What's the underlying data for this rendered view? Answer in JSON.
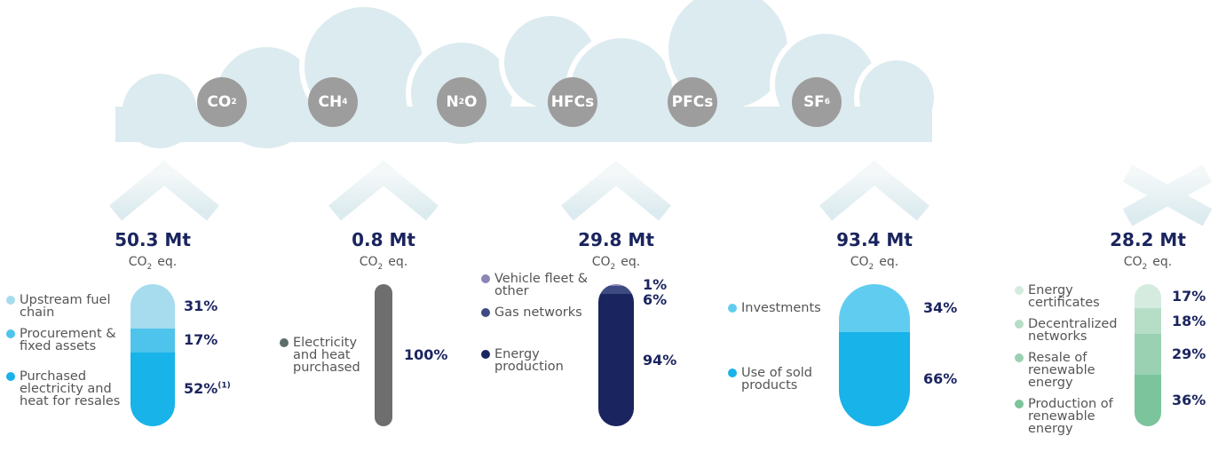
{
  "gases": [
    {
      "text": "CO",
      "sub": "2"
    },
    {
      "text": "CH",
      "sub": "4"
    },
    {
      "text": "N",
      "sub": "2",
      "after": "O"
    },
    {
      "text": "HFCs"
    },
    {
      "text": "PFCs"
    },
    {
      "text": "SF",
      "sub": "6"
    }
  ],
  "columns": [
    {
      "total": "50.3 Mt",
      "unit": "CO",
      "unit_sub": "2",
      "unit_suffix": "eq.",
      "segments": [
        {
          "label": "Upstream fuel chain",
          "value": 31,
          "value_label": "31%",
          "color": "#a6dcee"
        },
        {
          "label": "Procurement & fixed assets",
          "value": 17,
          "value_label": "17%",
          "color": "#4ec4ec"
        },
        {
          "label": "Purchased electricity and heat for resales",
          "value": 52,
          "value_label": "52%",
          "note": "(1)",
          "color": "#18b3e8"
        }
      ]
    },
    {
      "total": "0.8 Mt",
      "unit": "CO",
      "unit_sub": "2",
      "unit_suffix": "eq.",
      "segments": [
        {
          "label": "Electricity and heat purchased",
          "value": 100,
          "value_label": "100%",
          "color": "#6e6e6e",
          "dot": "#5b6e6b"
        }
      ]
    },
    {
      "total": "29.8 Mt",
      "unit": "CO",
      "unit_sub": "2",
      "unit_suffix": "eq.",
      "segments": [
        {
          "label": "Vehicle fleet & other",
          "value": 1,
          "value_label": "1%",
          "color": "#8a86b6"
        },
        {
          "label": "Gas networks",
          "value": 6,
          "value_label": "6%",
          "color": "#3e4a82"
        },
        {
          "label": "Energy production",
          "value": 94,
          "value_label": "94%",
          "color": "#1a245e"
        }
      ]
    },
    {
      "total": "93.4 Mt",
      "unit": "CO",
      "unit_sub": "2",
      "unit_suffix": "eq.",
      "segments": [
        {
          "label": "Investments",
          "value": 34,
          "value_label": "34%",
          "color": "#60cdf0"
        },
        {
          "label": "Use of sold products",
          "value": 66,
          "value_label": "66%",
          "color": "#18b3e8"
        }
      ]
    },
    {
      "total": "28.2 Mt",
      "unit": "CO",
      "unit_sub": "2",
      "unit_suffix": "eq.",
      "segments": [
        {
          "label": "Energy certificates",
          "value": 17,
          "value_label": "17%",
          "color": "#d5ebe0"
        },
        {
          "label": "Decentralized networks",
          "value": 18,
          "value_label": "18%",
          "color": "#b6dec7"
        },
        {
          "label": "Resale of renewable energy",
          "value": 29,
          "value_label": "29%",
          "color": "#9ad1b2"
        },
        {
          "label": "Production of renewable energy",
          "value": 36,
          "value_label": "36%",
          "color": "#7cc49c"
        }
      ]
    }
  ]
}
